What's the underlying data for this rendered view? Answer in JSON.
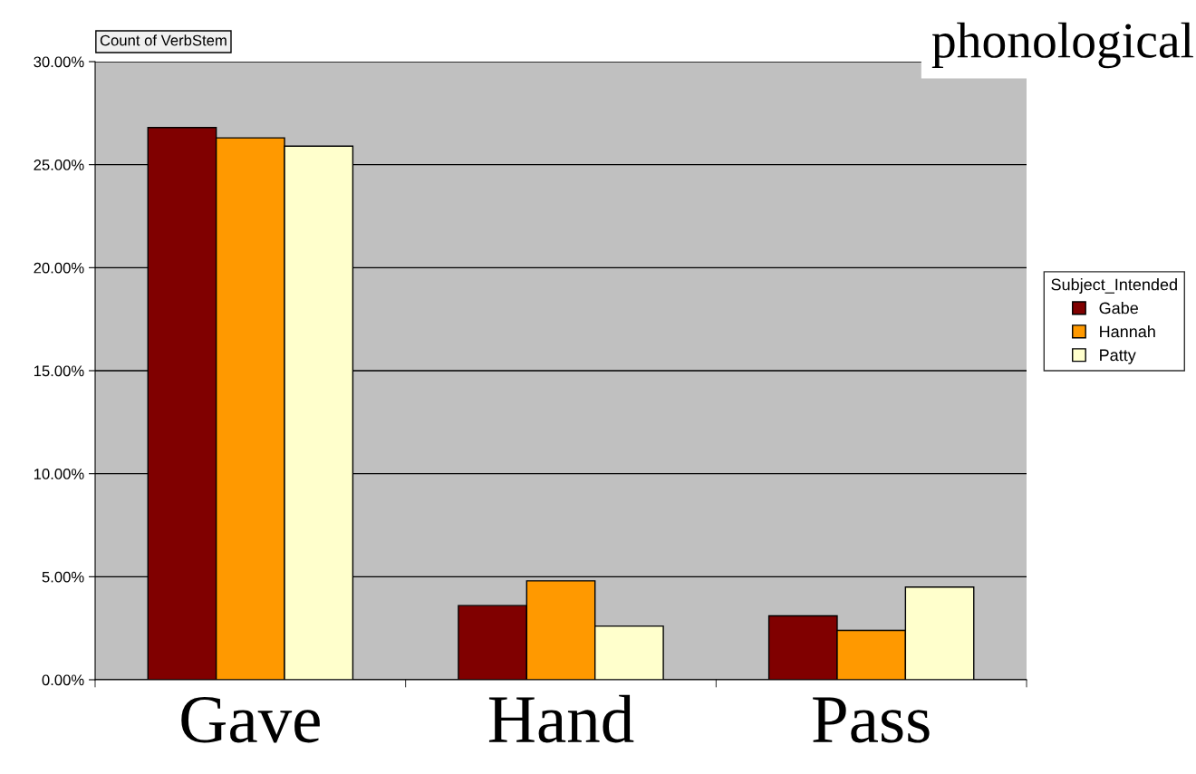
{
  "chart_data": {
    "type": "bar",
    "categories": [
      "Gave",
      "Hand",
      "Pass"
    ],
    "series": [
      {
        "name": "Gabe",
        "color": "#800000",
        "values": [
          26.8,
          3.6,
          3.1
        ]
      },
      {
        "name": "Hannah",
        "color": "#ff9900",
        "values": [
          26.3,
          4.8,
          2.4
        ]
      },
      {
        "name": "Patty",
        "color": "#ffffcc",
        "values": [
          25.9,
          2.6,
          4.5
        ]
      }
    ],
    "ylim": [
      0,
      30
    ],
    "yticks": [
      {
        "value": 0,
        "label": "0.00%"
      },
      {
        "value": 5,
        "label": "5.00%"
      },
      {
        "value": 10,
        "label": "10.00%"
      },
      {
        "value": 15,
        "label": "15.00%"
      },
      {
        "value": 20,
        "label": "20.00%"
      },
      {
        "value": 25,
        "label": "25.00%"
      },
      {
        "value": 30,
        "label": "30.00%"
      }
    ],
    "grid": "y",
    "legend": "right",
    "legend_title": "Subject_Intended",
    "annotations": [
      "Count of VerbStem",
      "phonological"
    ]
  }
}
